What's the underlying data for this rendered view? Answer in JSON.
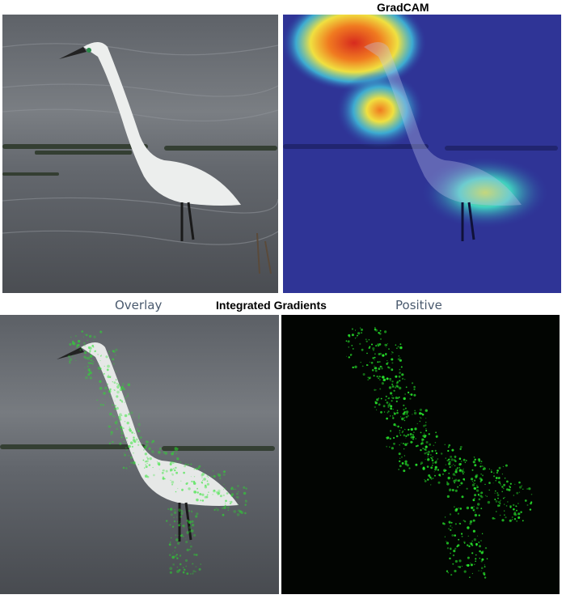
{
  "gradcam": {
    "title": "GradCAM"
  },
  "integrated_gradients": {
    "title": "Integrated Gradients",
    "overlay_label": "Overlay",
    "positive_label": "Positive"
  },
  "colors": {
    "water_dark": "#3e4247",
    "water_mid": "#6b7076",
    "water_light": "#8b9096",
    "heatmap_base": "#2b2f9a",
    "heatmap_hot": "#d72a1e",
    "attribution_green": "#27e52c",
    "positive_bg": "#020502"
  }
}
